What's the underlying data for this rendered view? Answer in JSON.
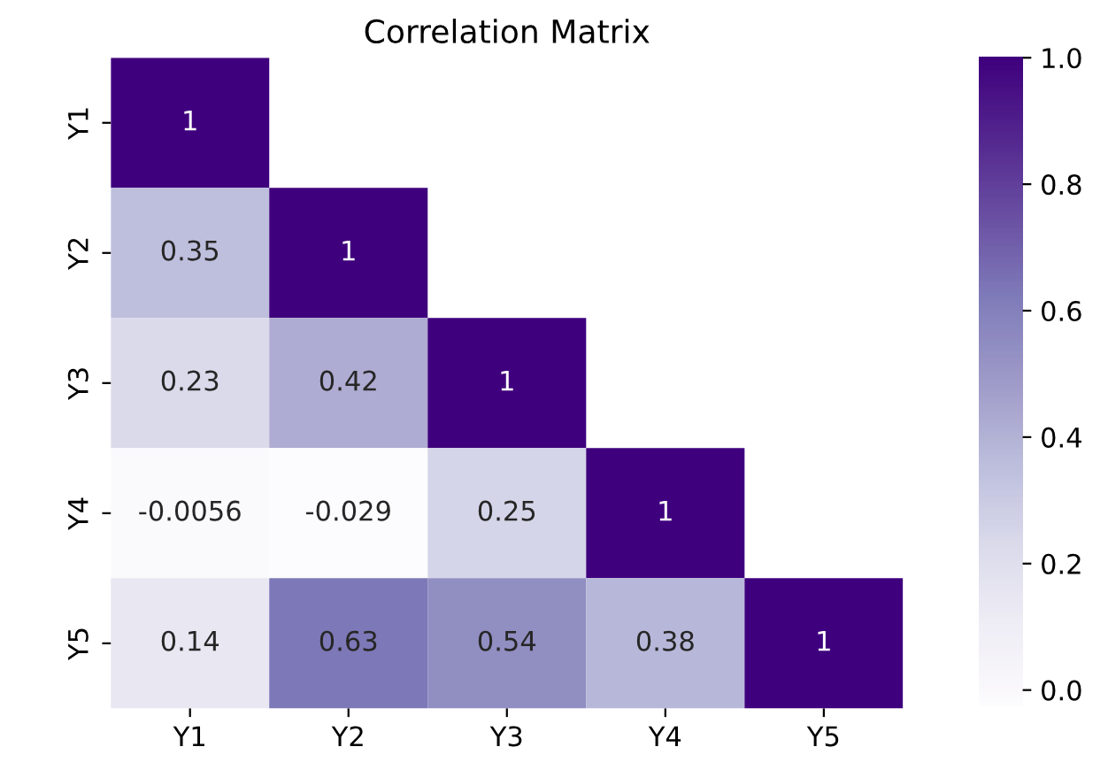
{
  "chart_data": {
    "type": "heatmap",
    "title": "Correlation Matrix",
    "categories": [
      "Y1",
      "Y2",
      "Y3",
      "Y4",
      "Y5"
    ],
    "y_categories": [
      "Y1",
      "Y2",
      "Y3",
      "Y4",
      "Y5"
    ],
    "cells": [
      [
        1,
        null,
        null,
        null,
        null
      ],
      [
        0.35,
        1,
        null,
        null,
        null
      ],
      [
        0.23,
        0.42,
        1,
        null,
        null
      ],
      [
        -0.0056,
        -0.029,
        0.25,
        1,
        null
      ],
      [
        0.14,
        0.63,
        0.54,
        0.38,
        1
      ]
    ],
    "data_labels": true,
    "clim": [
      -0.029,
      1
    ],
    "cticks": [
      {
        "value": 0.0,
        "label": "0.0"
      },
      {
        "value": 0.2,
        "label": "0.2"
      },
      {
        "value": 0.4,
        "label": "0.4"
      },
      {
        "value": 0.6,
        "label": "0.6"
      },
      {
        "value": 0.8,
        "label": "0.8"
      },
      {
        "value": 1.0,
        "label": "1.0"
      }
    ]
  }
}
